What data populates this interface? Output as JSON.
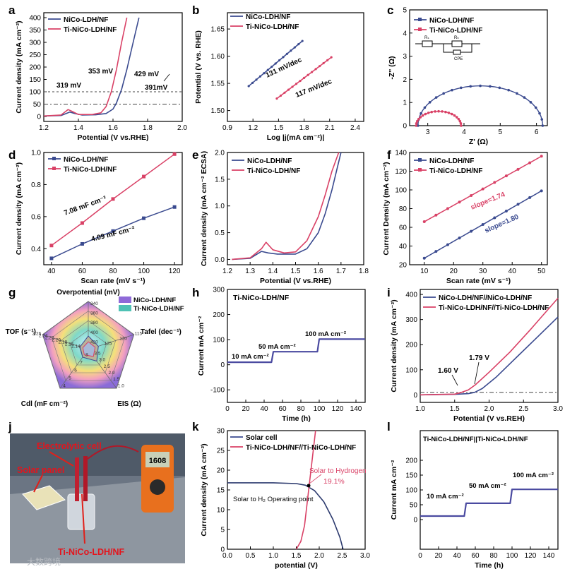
{
  "colors": {
    "navy": "#3a4a8f",
    "pink": "#d94166",
    "black": "#000000",
    "grey": "#555555",
    "teal": "#2bb3a8"
  },
  "chart_data": [
    {
      "id": "a",
      "type": "line",
      "panel": "a",
      "xlabel": "Potential (V vs.RHE)",
      "ylabel": "Current density (mA cm⁻²)",
      "xlim": [
        1.2,
        2.0
      ],
      "ylim": [
        -20,
        420
      ],
      "xticks": [
        1.2,
        1.4,
        1.6,
        1.8,
        2.0
      ],
      "yticks": [
        0,
        50,
        100,
        150,
        200,
        250,
        300,
        350,
        400
      ],
      "legend": [
        "NiCo-LDH/NF",
        "Ti-NiCo-LDH/NF"
      ],
      "series": [
        {
          "name": "NiCo-LDH/NF",
          "x": [
            1.2,
            1.3,
            1.35,
            1.38,
            1.42,
            1.5,
            1.56,
            1.6,
            1.62,
            1.65,
            1.68,
            1.71,
            1.74,
            1.75
          ],
          "y": [
            2,
            4,
            18,
            12,
            6,
            7,
            12,
            30,
            55,
            110,
            190,
            280,
            370,
            400
          ]
        },
        {
          "name": "Ti-NiCo-LDH/NF",
          "x": [
            1.2,
            1.3,
            1.34,
            1.36,
            1.4,
            1.48,
            1.53,
            1.56,
            1.59,
            1.62,
            1.65,
            1.68
          ],
          "y": [
            2,
            6,
            28,
            22,
            8,
            8,
            15,
            40,
            100,
            190,
            300,
            400
          ]
        }
      ],
      "annotations": [
        "319 mV",
        "353 mV",
        "429 mV",
        "391mV"
      ]
    },
    {
      "id": "b",
      "type": "line",
      "panel": "b",
      "xlabel": "Log |j(mA cm⁻²)|",
      "ylabel": "Potential (V vs. RHE)",
      "xlim": [
        0.9,
        2.5
      ],
      "ylim": [
        1.48,
        1.68
      ],
      "xticks": [
        0.9,
        1.2,
        1.5,
        1.8,
        2.1,
        2.4
      ],
      "yticks": [
        1.5,
        1.55,
        1.6,
        1.65
      ],
      "legend": [
        "NiCo-LDH/NF",
        "Ti-NiCo-LDH/NF"
      ],
      "series": [
        {
          "name": "NiCo-LDH/NF",
          "x": [
            1.15,
            1.78
          ],
          "y": [
            1.545,
            1.628
          ]
        },
        {
          "name": "Ti-NiCo-LDH/NF",
          "x": [
            1.48,
            2.12
          ],
          "y": [
            1.522,
            1.598
          ]
        }
      ],
      "annotations": [
        "131 mV/dec",
        "117 mV/dec"
      ]
    },
    {
      "id": "c",
      "type": "scatter",
      "panel": "c",
      "xlabel": "Z' (Ω)",
      "ylabel": "-Z'' (Ω)",
      "xlim": [
        2.5,
        6.3
      ],
      "ylim": [
        0,
        5
      ],
      "xticks": [
        3,
        4,
        5,
        6
      ],
      "yticks": [
        0,
        1,
        2,
        3,
        4,
        5
      ],
      "legend": [
        "NiCo-LDH/NF",
        "Ti-NiCo-LDH/NF"
      ],
      "series": [
        {
          "name": "NiCo-LDH/NF",
          "center": 4.45,
          "radius": 1.72
        },
        {
          "name": "Ti-NiCo-LDH/NF",
          "center": 3.3,
          "radius": 0.62
        }
      ],
      "annotations": [
        "Rₛ",
        "Rₕ",
        "CPE"
      ]
    },
    {
      "id": "d",
      "type": "scatter",
      "panel": "d",
      "xlabel": "Scan rate (mV s⁻¹)",
      "ylabel": "Current density (mA cm⁻²)",
      "xlim": [
        35,
        125
      ],
      "ylim": [
        0.3,
        1.0
      ],
      "xticks": [
        40,
        60,
        80,
        100,
        120
      ],
      "yticks": [
        0.4,
        0.6,
        0.8,
        1.0
      ],
      "legend": [
        "NiCo-LDH/NF",
        "Ti-NiCo-LDH/NF"
      ],
      "series": [
        {
          "name": "NiCo-LDH/NF",
          "x": [
            40,
            60,
            80,
            100,
            120
          ],
          "y": [
            0.34,
            0.43,
            0.51,
            0.59,
            0.66
          ]
        },
        {
          "name": "Ti-NiCo-LDH/NF",
          "x": [
            40,
            60,
            80,
            100,
            120
          ],
          "y": [
            0.42,
            0.56,
            0.71,
            0.85,
            0.99
          ]
        }
      ],
      "annotations": [
        "7.08 mF cm⁻²",
        "4.09 mF cm⁻²"
      ]
    },
    {
      "id": "e",
      "type": "line",
      "panel": "e",
      "xlabel": "Potential (V vs.RHE)",
      "ylabel": "Current density (mA cm⁻² ECSA)",
      "xlim": [
        1.2,
        1.8
      ],
      "ylim": [
        -0.1,
        2.0
      ],
      "xticks": [
        1.2,
        1.3,
        1.4,
        1.5,
        1.6,
        1.7,
        1.8
      ],
      "yticks": [
        0.0,
        0.5,
        1.0,
        1.5,
        2.0
      ],
      "legend": [
        "NiCo-LDH/NF",
        "Ti-NiCo-LDH/NF"
      ],
      "series": [
        {
          "name": "NiCo-LDH/NF",
          "x": [
            1.22,
            1.3,
            1.35,
            1.38,
            1.42,
            1.5,
            1.55,
            1.6,
            1.63,
            1.66,
            1.68,
            1.7
          ],
          "y": [
            0.0,
            0.02,
            0.15,
            0.12,
            0.1,
            0.1,
            0.2,
            0.5,
            0.85,
            1.3,
            1.65,
            2.0
          ]
        },
        {
          "name": "Ti-NiCo-LDH/NF",
          "x": [
            1.22,
            1.3,
            1.35,
            1.37,
            1.4,
            1.45,
            1.5,
            1.55,
            1.6,
            1.63,
            1.66,
            1.69
          ],
          "y": [
            0.0,
            0.03,
            0.2,
            0.32,
            0.18,
            0.12,
            0.14,
            0.35,
            0.8,
            1.2,
            1.65,
            2.0
          ]
        }
      ]
    },
    {
      "id": "f",
      "type": "scatter",
      "panel": "f",
      "xlabel": "Scan rate (mV s⁻¹)",
      "ylabel": "Current Density (mA cm⁻²)",
      "xlim": [
        5,
        52
      ],
      "ylim": [
        20,
        140
      ],
      "xticks": [
        10,
        20,
        30,
        40,
        50
      ],
      "yticks": [
        20,
        40,
        60,
        80,
        100,
        120,
        140
      ],
      "legend": [
        "NiCo-LDH/NF",
        "Ti-NiCo-LDH/NF"
      ],
      "series": [
        {
          "name": "NiCo-LDH/NF",
          "x": [
            10,
            50
          ],
          "y": [
            27,
            99
          ]
        },
        {
          "name": "Ti-NiCo-LDH/NF",
          "x": [
            10,
            50
          ],
          "y": [
            66,
            136
          ]
        }
      ],
      "annotations": [
        "slope=1.74",
        "slope=1.80"
      ]
    },
    {
      "id": "g",
      "type": "radar",
      "panel": "g",
      "axes": [
        "Overpotential (mV)",
        "Tafel (dec⁻¹)",
        "EIS (Ω)",
        "Cdl (mF cm⁻²)",
        "TOF (s⁻¹)"
      ],
      "axis_ticks": [
        [
          "340",
          "360",
          "380",
          "400",
          "420"
        ],
        [
          "115",
          "120",
          "125"
        ],
        [
          "1.0",
          "1.5",
          "2.0",
          "2.5",
          "3.0",
          "3.5"
        ],
        [
          "4",
          "5",
          "6",
          "7",
          "8"
        ],
        [
          "2.26",
          "2.24",
          "2.22",
          "2.20",
          "2.18",
          "2.16",
          "2.14"
        ]
      ],
      "legend": [
        "NiCo-LDH/NF",
        "Ti-NiCo-LDH/NF"
      ]
    },
    {
      "id": "h",
      "type": "line",
      "panel": "h",
      "title": "Ti-NiCo-LDH/NF",
      "xlabel": "Time (h)",
      "ylabel": "Current mA cm⁻²",
      "xlim": [
        0,
        150
      ],
      "ylim": [
        -150,
        300
      ],
      "xticks": [
        0,
        20,
        40,
        60,
        80,
        100,
        120,
        140
      ],
      "yticks": [
        -100,
        0,
        100,
        200,
        300
      ],
      "series": [
        {
          "name": "Ti-NiCo-LDH/NF",
          "x": [
            0,
            48,
            50,
            98,
            100,
            150
          ],
          "y": [
            10,
            10,
            52,
            52,
            102,
            102
          ]
        }
      ],
      "annotations": [
        "10 mA cm⁻²",
        "50 mA cm⁻²",
        "100 mA cm⁻²"
      ]
    },
    {
      "id": "i",
      "type": "line",
      "panel": "i",
      "xlabel": "Potential (V vs.REH)",
      "ylabel": "Current density (mA cm⁻²)",
      "xlim": [
        1.0,
        3.0
      ],
      "ylim": [
        -30,
        420
      ],
      "xticks": [
        1.0,
        1.5,
        2.0,
        2.5,
        3.0
      ],
      "yticks": [
        0,
        100,
        200,
        300,
        400
      ],
      "legend": [
        "NiCo-LDH/NF//NiCo-LDH/NF",
        "Ti-NiCo-LDH/NF//Ti-NiCo-LDH/NF"
      ],
      "series": [
        {
          "name": "NiCo-LDH/NF//NiCo-LDH/NF",
          "x": [
            1.0,
            1.5,
            1.7,
            1.79,
            1.9,
            2.1,
            2.4,
            2.7,
            3.0
          ],
          "y": [
            0,
            2,
            5,
            10,
            25,
            70,
            150,
            230,
            310
          ]
        },
        {
          "name": "Ti-NiCo-LDH/NF//Ti-NiCo-LDH/NF",
          "x": [
            1.0,
            1.5,
            1.6,
            1.7,
            1.8,
            2.0,
            2.3,
            2.6,
            3.0
          ],
          "y": [
            0,
            3,
            10,
            20,
            40,
            90,
            170,
            260,
            385
          ]
        }
      ],
      "annotations": [
        "1.60 V",
        "1.79 V"
      ]
    },
    {
      "id": "k",
      "type": "line",
      "panel": "k",
      "xlabel": "potential (V)",
      "ylabel": "Current density (mA cm⁻²)",
      "xlim": [
        0,
        3.0
      ],
      "ylim": [
        0,
        30
      ],
      "xticks": [
        0.0,
        0.5,
        1.0,
        1.5,
        2.0,
        2.5,
        3.0
      ],
      "yticks": [
        0,
        5,
        10,
        15,
        20,
        25,
        30
      ],
      "legend": [
        "Solar cell",
        "Ti-NiCo-LDH/NF//Ti-NiCo-LDH/NF"
      ],
      "series": [
        {
          "name": "Solar cell",
          "x": [
            0,
            0.5,
            1.0,
            1.5,
            1.7,
            1.9,
            2.1,
            2.3,
            2.45,
            2.52
          ],
          "y": [
            16.8,
            16.8,
            16.8,
            16.6,
            16.2,
            14.8,
            12,
            7.5,
            3,
            0
          ]
        },
        {
          "name": "Ti-NiCo-LDH/NF//Ti-NiCo-LDH/NF",
          "x": [
            1.5,
            1.6,
            1.68,
            1.74,
            1.8,
            1.86,
            1.92
          ],
          "y": [
            0,
            2,
            6,
            12,
            18,
            24,
            30
          ]
        }
      ],
      "annotations": [
        "Solar to Hydrogen",
        "19.1%",
        "Solar to H₂ Operating point"
      ]
    },
    {
      "id": "l",
      "type": "line",
      "panel": "l",
      "title": "Ti-NiCo-LDH/NF||Ti-NiCo-LDH/NF",
      "xlabel": "Time (h)",
      "ylabel": "Current mA cm⁻²",
      "xlim": [
        0,
        150
      ],
      "ylim": [
        -100,
        300
      ],
      "xticks": [
        0,
        20,
        40,
        60,
        80,
        100,
        120,
        140
      ],
      "yticks": [
        0,
        50,
        100,
        150,
        200
      ],
      "series": [
        {
          "name": "Ti-NiCo-LDH/NF||Ti-NiCo-LDH/NF",
          "x": [
            0,
            48,
            50,
            98,
            100,
            150
          ],
          "y": [
            12,
            12,
            55,
            55,
            102,
            102
          ]
        }
      ],
      "annotations": [
        "10 mA cm⁻²",
        "50 mA cm⁻²",
        "100 mA cm⁻²"
      ]
    }
  ],
  "panel_letters": [
    "a",
    "b",
    "c",
    "d",
    "e",
    "f",
    "g",
    "h",
    "i",
    "j",
    "k",
    "l"
  ],
  "photo": {
    "labels": [
      "Electrolytic cell",
      "Solar panel",
      "Ti-NiCo-LDH/NF"
    ],
    "meter_reading": "1608"
  },
  "watermark": "大数跨境"
}
